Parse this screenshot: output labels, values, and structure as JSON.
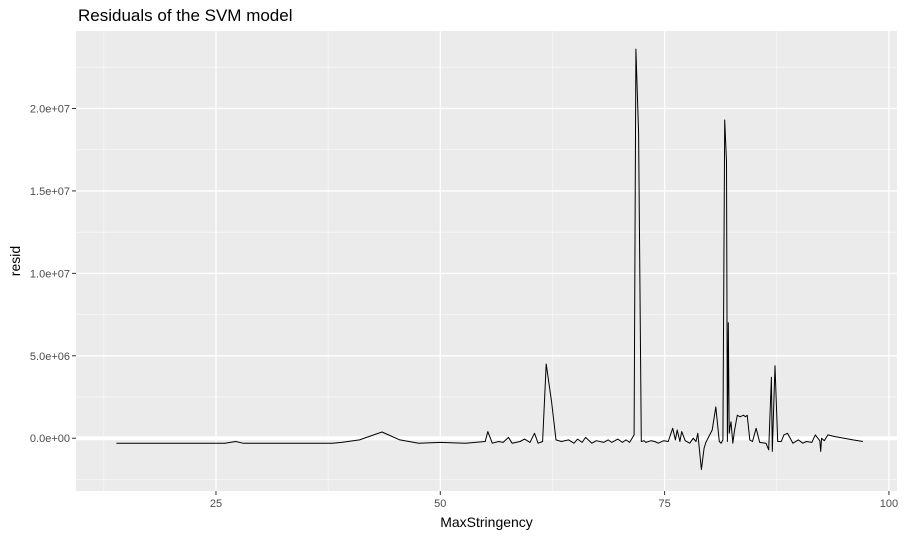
{
  "chart_data": {
    "type": "line",
    "title": "Residuals of the SVM model",
    "xlabel": "MaxStringency",
    "ylabel": "resid",
    "xlim": [
      9.4,
      100.9
    ],
    "ylim": [
      -3200000,
      24700000
    ],
    "x_ticks": [
      {
        "value": 25,
        "label": "25"
      },
      {
        "value": 50,
        "label": "50"
      },
      {
        "value": 75,
        "label": "75"
      },
      {
        "value": 100,
        "label": "100"
      }
    ],
    "y_ticks": [
      {
        "value": 0,
        "label": "0.0e+00"
      },
      {
        "value": 5000000,
        "label": "5.0e+06"
      },
      {
        "value": 10000000,
        "label": "1.0e+07"
      },
      {
        "value": 15000000,
        "label": "1.5e+07"
      },
      {
        "value": 20000000,
        "label": "2.0e+07"
      }
    ],
    "background": "#ebebeb",
    "grid": true,
    "line_color": "#000000",
    "hline_y": 0,
    "hline_color": "#ffffff",
    "series": [
      {
        "x": [
          13.9,
          20,
          26,
          27.2,
          28,
          35,
          38,
          39,
          41,
          43.5,
          45.5,
          47.6,
          50,
          52.8,
          55,
          55.3,
          55.8,
          56.5,
          57,
          57.6,
          58,
          58.9,
          59.4,
          60,
          60.5,
          60.9,
          61.4,
          61.8,
          62.4,
          62.9,
          63.5,
          64.3,
          64.9,
          65.3,
          65.8,
          66.2,
          66.9,
          67.4,
          68.2,
          68.7,
          69.1,
          69.8,
          70.3,
          70.7,
          71.1,
          71.6,
          71.8,
          72.1,
          72.4,
          72.7,
          72.9,
          73.5,
          73.9,
          74.3,
          74.9,
          75.4,
          75.9,
          76.2,
          76.4,
          76.7,
          76.9,
          77.3,
          77.8,
          78.2,
          78.5,
          78.7,
          79.1,
          79.4,
          79.6,
          80.3,
          80.7,
          81.1,
          81.3,
          81.5,
          81.7,
          81.9,
          82,
          82.1,
          82.2,
          82.3,
          82.4,
          82.6,
          82.8,
          83.1,
          83.4,
          83.8,
          84,
          84.2,
          84.5,
          84.8,
          85.2,
          85.6,
          86.3,
          86.6,
          86.9,
          87,
          87.3,
          87.6,
          88,
          88.3,
          88.7,
          89.3,
          89.9,
          90.4,
          90.8,
          91.4,
          91.8,
          92.3,
          92.4,
          92.5,
          92.8,
          93.2,
          94,
          95,
          96,
          97.1
        ],
        "y": [
          -300000,
          -300000,
          -300000,
          -200000,
          -300000,
          -300000,
          -300000,
          -250000,
          -100000,
          380000,
          -100000,
          -300000,
          -250000,
          -300000,
          -200000,
          400000,
          -300000,
          -200000,
          -250000,
          50000,
          -300000,
          -200000,
          -50000,
          -250000,
          300000,
          -300000,
          -200000,
          4500000,
          2200000,
          -100000,
          -200000,
          -100000,
          -300000,
          -50000,
          -250000,
          50000,
          -300000,
          -150000,
          -250000,
          -100000,
          -250000,
          -50000,
          -250000,
          -100000,
          -250000,
          200000,
          23600000,
          18500000,
          -200000,
          -150000,
          -250000,
          -150000,
          -200000,
          -300000,
          -150000,
          -200000,
          600000,
          -100000,
          500000,
          -200000,
          400000,
          -150000,
          -300000,
          0,
          -200000,
          300000,
          -1900000,
          -600000,
          -250000,
          500000,
          1900000,
          -200000,
          -300000,
          -100000,
          19300000,
          16800000,
          -200000,
          7000000,
          300000,
          700000,
          1000000,
          -300000,
          500000,
          1400000,
          1300000,
          1400000,
          1300000,
          1400000,
          -100000,
          -200000,
          600000,
          -250000,
          -300000,
          -700000,
          3700000,
          -800000,
          4400000,
          -200000,
          -200000,
          200000,
          300000,
          -300000,
          -100000,
          -300000,
          -200000,
          -250000,
          200000,
          -150000,
          -800000,
          0,
          -150000,
          200000,
          100000,
          0,
          -100000,
          -200000
        ]
      }
    ]
  }
}
